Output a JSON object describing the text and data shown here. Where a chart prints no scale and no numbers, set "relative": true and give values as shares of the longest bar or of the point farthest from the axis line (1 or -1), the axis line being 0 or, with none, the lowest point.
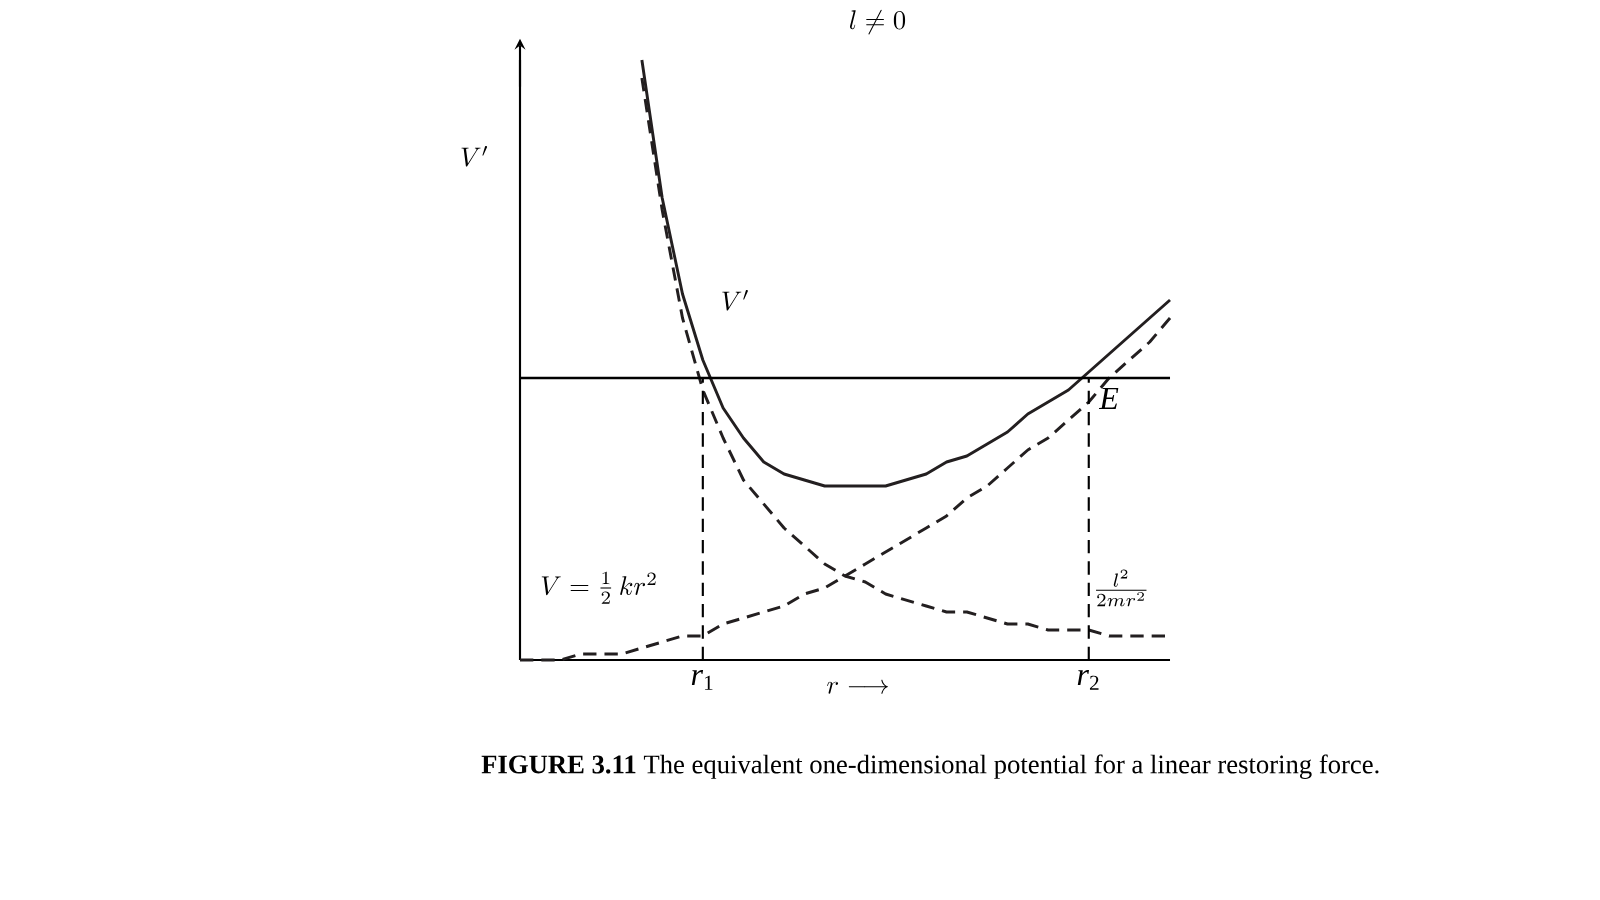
{
  "chart_data": {
    "type": "line",
    "title": "l \\neq 0",
    "xlabel": "r \\longrightarrow",
    "ylabel": "V'",
    "relative": true,
    "categories": [
      null,
      null,
      null,
      null,
      null,
      null,
      null,
      null,
      null,
      "*r*$_{1}$",
      null,
      null,
      null,
      null,
      null,
      null,
      null,
      null,
      null,
      null,
      null,
      null,
      null,
      null,
      null,
      null,
      null,
      null,
      "*r*$_{2}$",
      null,
      null,
      null,
      null
    ],
    "series": [
      {
        "name": "V'",
        "color": "#231f20",
        "line_style": "solid",
        "values": [
          null,
          null,
          null,
          null,
          null,
          null,
          1,
          0.77,
          0.61,
          0.5,
          0.42,
          0.37,
          0.33,
          0.31,
          0.3,
          0.29,
          0.29,
          0.29,
          0.29,
          0.3,
          0.31,
          0.33,
          0.34,
          0.36,
          0.38,
          0.41,
          0.43,
          0.45,
          0.48,
          0.51,
          0.54,
          0.57,
          0.6
        ]
      },
      {
        "name": "V=\\frac{1}{2}\\,kr^{2}",
        "color": "#231f20",
        "line_style": "dashed",
        "values": [
          0,
          0,
          0,
          0.01,
          0.01,
          0.01,
          0.02,
          0.03,
          0.04,
          0.04,
          0.06,
          0.07,
          0.08,
          0.09,
          0.11,
          0.12,
          0.14,
          0.16,
          0.18,
          0.2,
          0.22,
          0.24,
          0.27,
          0.29,
          0.32,
          0.35,
          0.37,
          0.4,
          0.43,
          0.47,
          0.5,
          0.53,
          0.57
        ]
      },
      {
        "name": "\\frac{l^{2}}{2mr^{2}}",
        "color": "#231f20",
        "line_style": "dashed",
        "values": [
          null,
          null,
          null,
          null,
          null,
          null,
          0.97,
          0.75,
          0.57,
          0.45,
          0.37,
          0.3,
          0.26,
          0.22,
          0.19,
          0.16,
          0.14,
          0.13,
          0.11,
          0.1,
          0.09,
          0.08,
          0.08,
          0.07,
          0.06,
          0.06,
          0.05,
          0.05,
          0.05,
          0.04,
          0.04,
          0.04,
          0.04
        ]
      }
    ],
    "ref_lines": [
      {
        "axis": "y",
        "value": 0.47,
        "label": "*E*",
        "line_style": "solid"
      },
      {
        "axis": "x",
        "value": "*r*$_{1}$",
        "line_style": "dashed"
      },
      {
        "axis": "x",
        "value": "*r*$_{2}$",
        "line_style": "dashed"
      }
    ],
    "annotations": [
      "**FIGURE 3.11**    The equivalent one-dimensional potential for a linear restoring force."
    ]
  }
}
